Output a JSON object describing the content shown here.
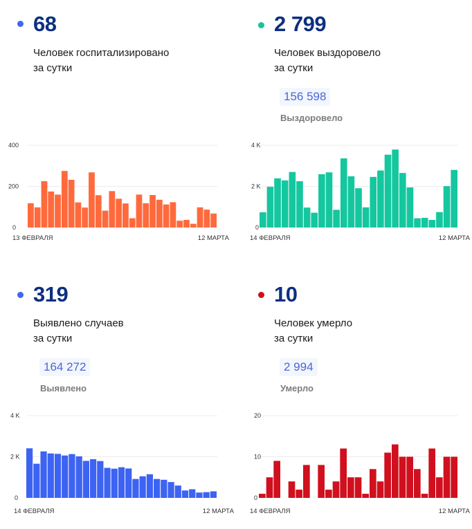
{
  "panels": [
    {
      "id": "hospitalized",
      "value": "68",
      "desc_line1": "Человек госпитализировано",
      "desc_line2": "за сутки",
      "dot_color": "#3f67f0",
      "total": null,
      "total_label": null
    },
    {
      "id": "recovered",
      "value": "2 799",
      "desc_line1": "Человек выздоровело",
      "desc_line2": "за сутки",
      "dot_color": "#17c49e",
      "total": "156 598",
      "total_label": "Выздоровело"
    },
    {
      "id": "cases",
      "value": "319",
      "desc_line1": "Выявлено случаев",
      "desc_line2": "за сутки",
      "dot_color": "#3f67f0",
      "total": "164 272",
      "total_label": "Выявлено"
    },
    {
      "id": "deaths",
      "value": "10",
      "desc_line1": "Человек умерло",
      "desc_line2": "за сутки",
      "dot_color": "#d0101e",
      "total": "2 994",
      "total_label": "Умерло"
    }
  ],
  "chart_data": [
    {
      "type": "bar",
      "title": "Человек госпитализировано за сутки",
      "color": "#ff6a3d",
      "x_start_label": "13 ФЕВРАЛЯ",
      "x_end_label": "12 МАРТА",
      "ylim": [
        0,
        400
      ],
      "yticks": [
        0,
        200,
        400
      ],
      "ytick_labels": [
        "0",
        "200",
        "400"
      ],
      "grid": true,
      "values": [
        118,
        98,
        225,
        175,
        160,
        275,
        232,
        122,
        97,
        268,
        157,
        82,
        177,
        140,
        117,
        45,
        160,
        118,
        158,
        135,
        112,
        123,
        33,
        37,
        18,
        98,
        87,
        68
      ]
    },
    {
      "type": "bar",
      "title": "Человек выздоровело за сутки",
      "color": "#14c79f",
      "x_start_label": "14 ФЕВРАЛЯ",
      "x_end_label": "12 МАРТА",
      "ylim": [
        0,
        4000
      ],
      "yticks": [
        0,
        2000,
        4000
      ],
      "ytick_labels": [
        "0",
        "2 K",
        "4 K"
      ],
      "grid": true,
      "values": [
        740,
        1980,
        2390,
        2290,
        2700,
        2250,
        970,
        720,
        2590,
        2680,
        860,
        3360,
        2490,
        1910,
        980,
        2460,
        2770,
        3540,
        3790,
        2650,
        1950,
        450,
        470,
        370,
        750,
        2010,
        2799
      ]
    },
    {
      "type": "bar",
      "title": "Выявлено случаев за сутки",
      "color": "#3d63f2",
      "x_start_label": "14 ФЕВРАЛЯ",
      "x_end_label": "12 МАРТА",
      "ylim": [
        0,
        4000
      ],
      "yticks": [
        0,
        2000,
        4000
      ],
      "ytick_labels": [
        "0",
        "2 K",
        "4 K"
      ],
      "grid": true,
      "values": [
        2410,
        1660,
        2260,
        2160,
        2140,
        2060,
        2130,
        2020,
        1800,
        1880,
        1790,
        1460,
        1420,
        1490,
        1430,
        920,
        1050,
        1150,
        920,
        880,
        770,
        600,
        360,
        420,
        260,
        280,
        319
      ]
    },
    {
      "type": "bar",
      "title": "Человек умерло за сутки",
      "color": "#d0101e",
      "x_start_label": "14 ФЕВРАЛЯ",
      "x_end_label": "12 МАРТА",
      "ylim": [
        0,
        20
      ],
      "yticks": [
        0,
        10,
        20
      ],
      "ytick_labels": [
        "0",
        "10",
        "20"
      ],
      "grid": true,
      "values": [
        1,
        5,
        9,
        0,
        4,
        2,
        8,
        0,
        8,
        2,
        4,
        12,
        5,
        5,
        1,
        7,
        4,
        11,
        13,
        10,
        10,
        7,
        1,
        12,
        5,
        10,
        10
      ]
    }
  ]
}
